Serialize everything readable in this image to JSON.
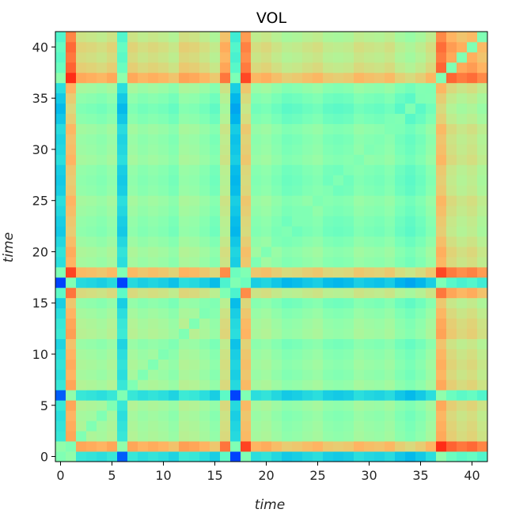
{
  "chart_data": {
    "type": "heatmap",
    "title": "VOL",
    "xlabel": "time",
    "ylabel": "time",
    "xlim": [
      0,
      41
    ],
    "ylim": [
      0,
      41
    ],
    "xticks": [
      0,
      5,
      10,
      15,
      20,
      25,
      30,
      35,
      40
    ],
    "yticks": [
      0,
      5,
      10,
      15,
      20,
      25,
      30,
      35,
      40
    ],
    "size": 42,
    "colormap": "rainbow",
    "value_range": [
      0,
      1
    ],
    "origin": "lower",
    "grid": false,
    "profile": [
      0.12,
      0.95,
      0.6,
      0.58,
      0.55,
      0.6,
      0.12,
      0.6,
      0.55,
      0.58,
      0.55,
      0.5,
      0.62,
      0.6,
      0.55,
      0.48,
      0.75,
      0.05,
      0.88,
      0.55,
      0.58,
      0.52,
      0.46,
      0.48,
      0.52,
      0.55,
      0.48,
      0.46,
      0.48,
      0.55,
      0.52,
      0.5,
      0.54,
      0.45,
      0.4,
      0.46,
      0.55,
      0.94,
      0.8,
      0.74,
      0.78,
      0.7
    ],
    "diagonal_value": 0.5,
    "colors": {
      "low": "#6e3af2",
      "mid": "#7ff8b8",
      "high": "#ef3c1e",
      "axis": "#000000"
    }
  }
}
